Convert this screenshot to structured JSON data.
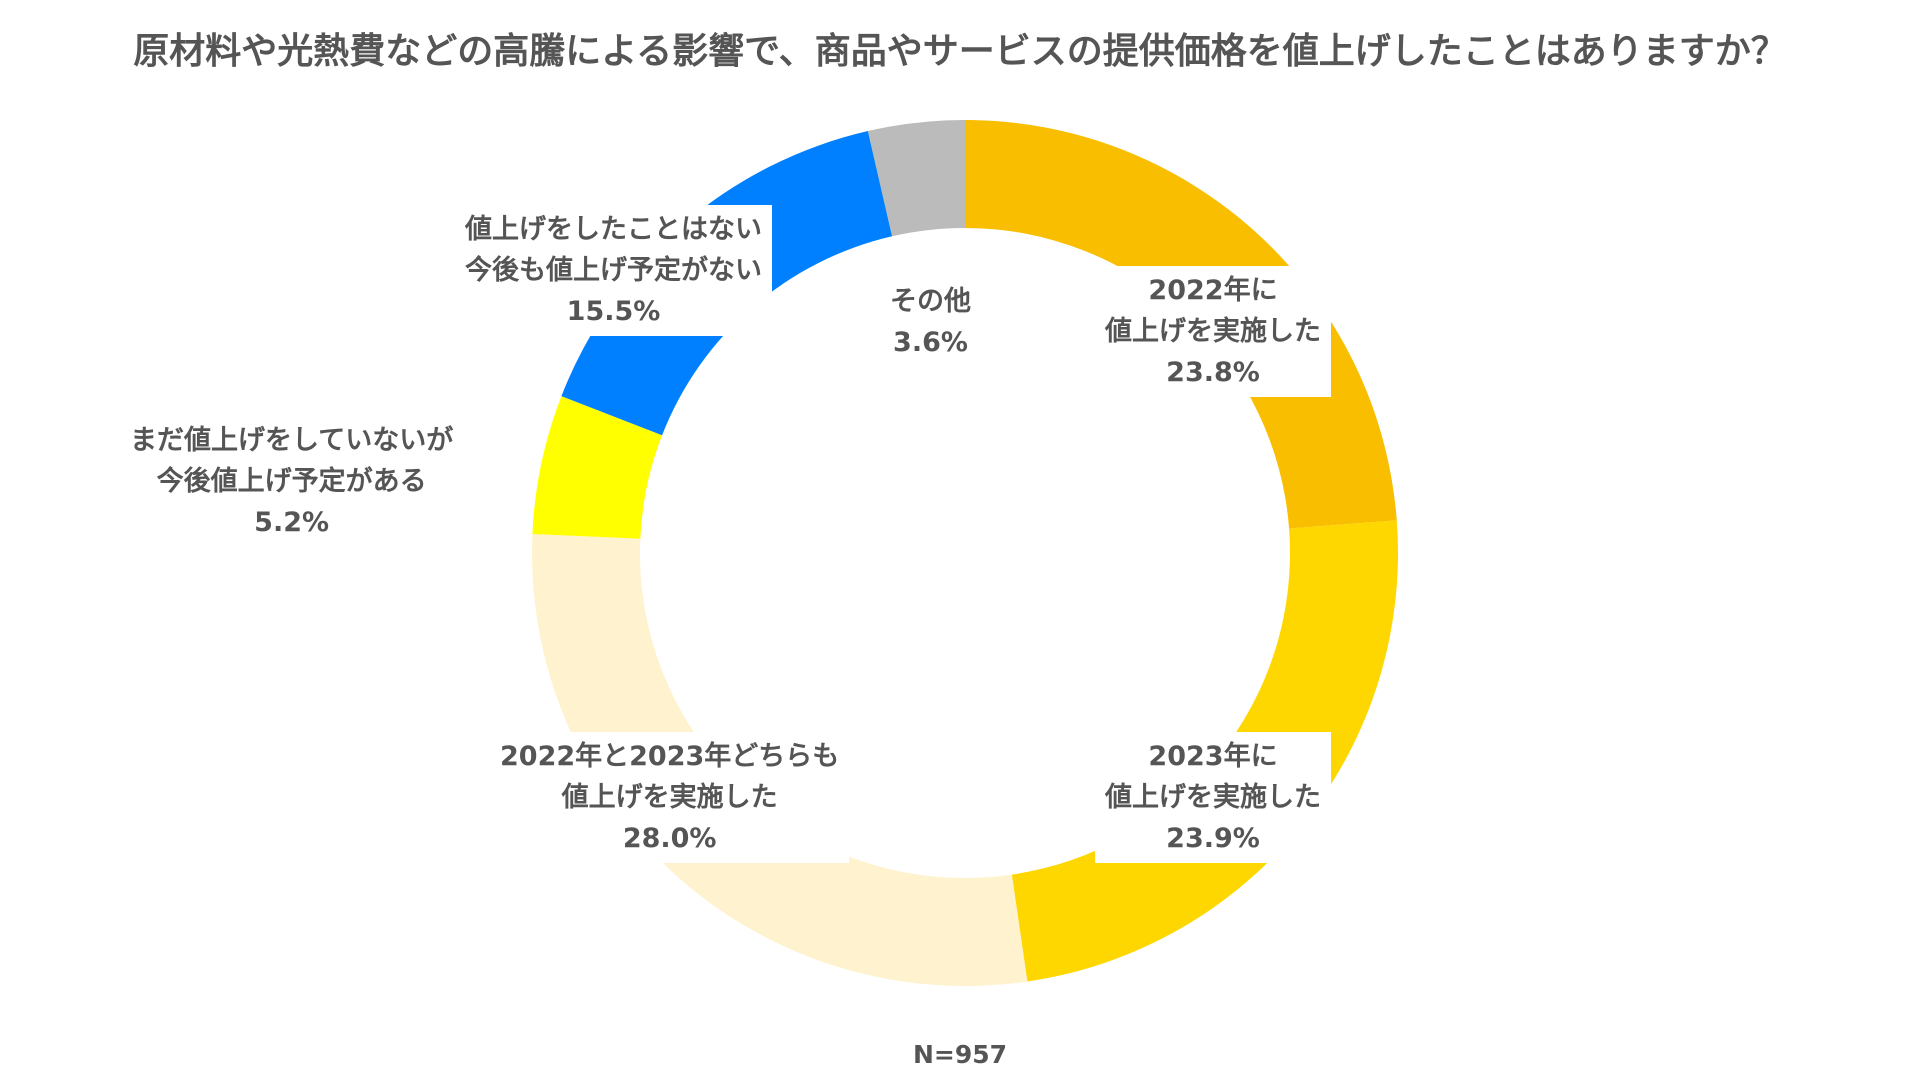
{
  "chart_data": {
    "type": "pie",
    "variant": "donut",
    "title": "原材料や光熱費などの高騰による影響で、商品やサービスの提供価格を値上げしたことはありますか？",
    "note": "N=957",
    "slices": [
      {
        "lines": [
          "2022年に",
          "値上げを実施した"
        ],
        "pct": "23.8%",
        "value": 23.8,
        "color": "#F9BE00"
      },
      {
        "lines": [
          "2023年に",
          "値上げを実施した"
        ],
        "pct": "23.9%",
        "value": 23.9,
        "color": "#FFD700"
      },
      {
        "lines": [
          "2022年と2023年どちらも",
          "値上げを実施した"
        ],
        "pct": "28.0%",
        "value": 28.0,
        "color": "#FFF2CF"
      },
      {
        "lines": [
          "まだ値上げをしていないが",
          "今後値上げ予定がある"
        ],
        "pct": "5.2%",
        "value": 5.2,
        "color": "#FFFF00"
      },
      {
        "lines": [
          "値上げをしたことはない",
          "今後も値上げ予定がない"
        ],
        "pct": "15.5%",
        "value": 15.5,
        "color": "#0080FF"
      },
      {
        "lines": [
          "その他"
        ],
        "pct": "3.6%",
        "value": 3.6,
        "color": "#BBBBBB"
      }
    ]
  }
}
